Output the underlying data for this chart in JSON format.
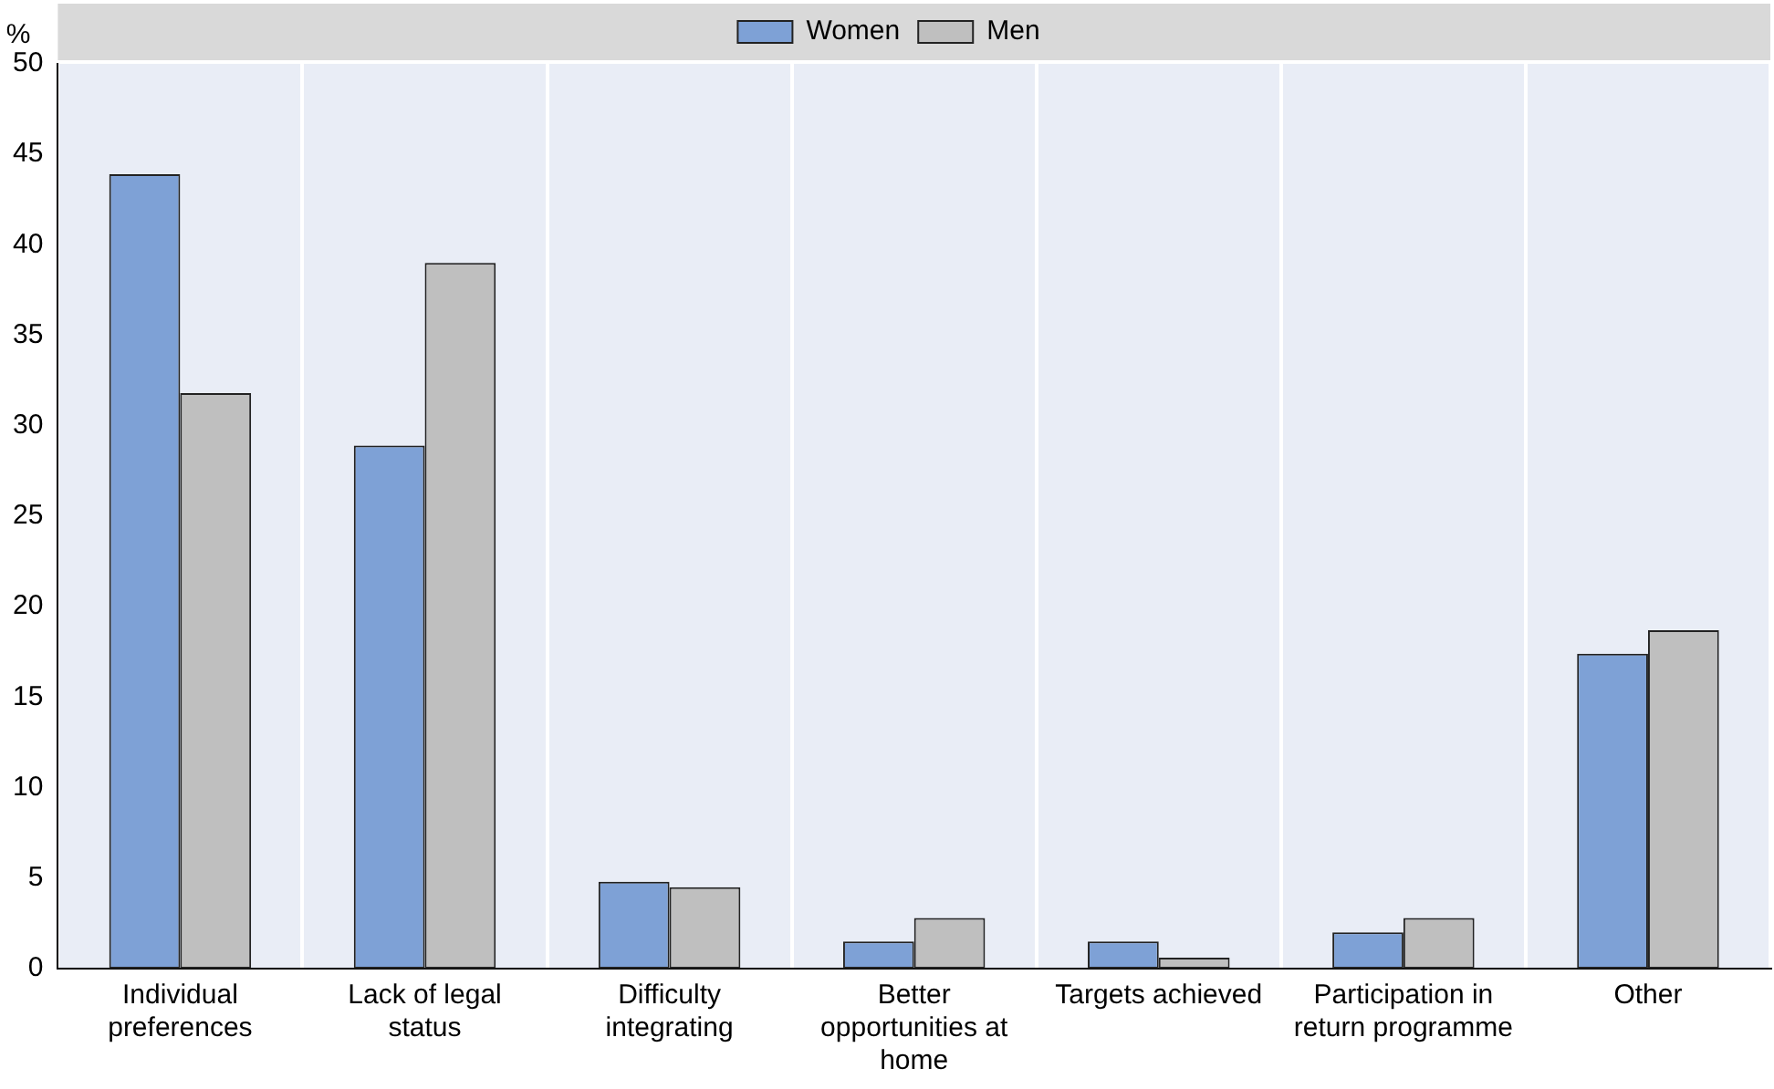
{
  "chart_data": {
    "type": "bar",
    "ylabel": "%",
    "categories": [
      "Individual preferences",
      "Lack of legal status",
      "Difficulty integrating",
      "Better opportunities at home",
      "Targets achieved",
      "Participation in return programme",
      "Other"
    ],
    "series": [
      {
        "name": "Women",
        "color": "#7ea1d6",
        "values": [
          43.9,
          28.9,
          4.8,
          1.5,
          1.5,
          2,
          17.4
        ]
      },
      {
        "name": "Men",
        "color": "#bfbfbf",
        "values": [
          31.8,
          39,
          4.5,
          2.8,
          0.6,
          2.8,
          18.7
        ]
      }
    ],
    "ylim": [
      0,
      50
    ],
    "yticks": [
      0,
      5,
      10,
      15,
      20,
      25,
      30,
      35,
      40,
      45,
      50
    ],
    "grid": "x",
    "legend": "top"
  }
}
